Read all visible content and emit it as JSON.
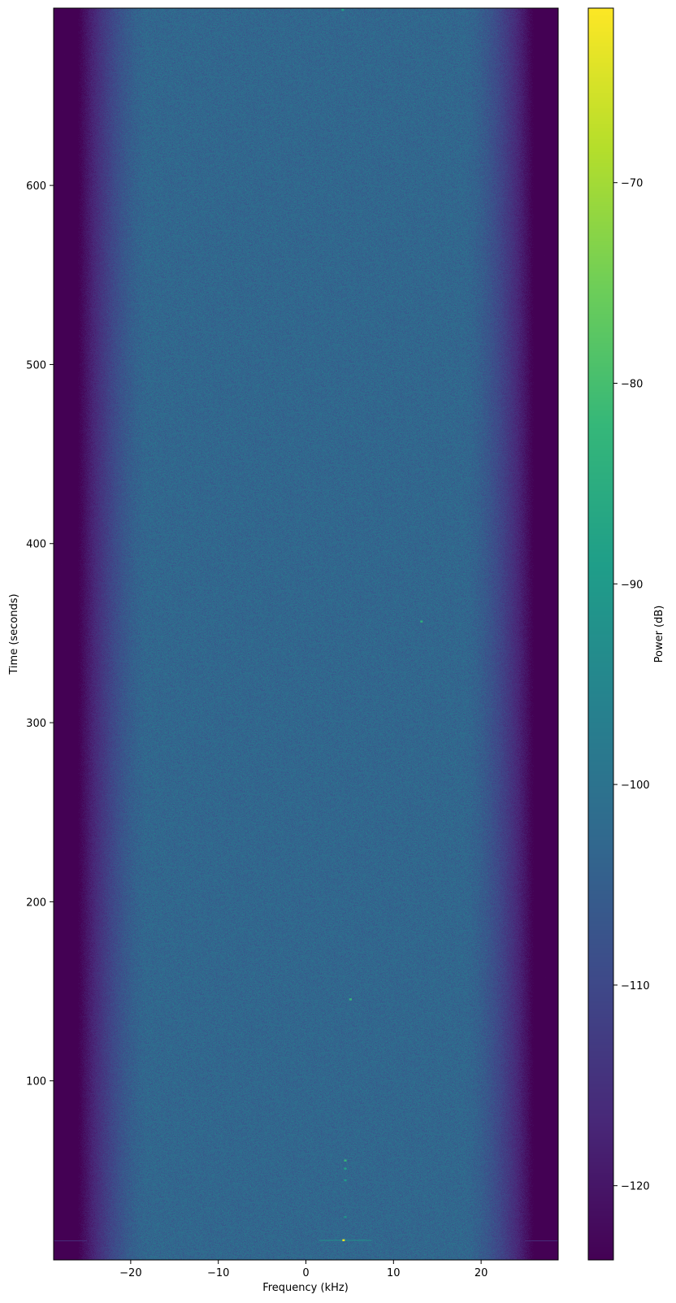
{
  "chart_data": {
    "type": "heatmap",
    "title": "",
    "xlabel": "Frequency (kHz)",
    "ylabel": "Time (seconds)",
    "colorbar_label": "Power (dB)",
    "colormap": "viridis",
    "xlim": [
      -28.8,
      28.8
    ],
    "ylim": [
      0,
      699
    ],
    "clim": [
      -123.7,
      -61.3
    ],
    "x_ticks": [
      -20,
      -10,
      0,
      10,
      20
    ],
    "x_tick_labels": [
      "−20",
      "−10",
      "0",
      "10",
      "20"
    ],
    "y_ticks": [
      100,
      200,
      300,
      400,
      500,
      600
    ],
    "y_tick_labels": [
      "100",
      "200",
      "300",
      "400",
      "500",
      "600"
    ],
    "colorbar_ticks": [
      -70,
      -80,
      -90,
      -100,
      -110,
      -120
    ],
    "colorbar_tick_labels": [
      "−70",
      "−80",
      "−90",
      "−100",
      "−110",
      "−120"
    ],
    "noise_floor_db": -103,
    "band_edge_floor_db": -124,
    "passband_khz": [
      -18,
      18
    ],
    "rolloff_edge_khz": [
      -26,
      26
    ],
    "peaks": [
      {
        "freq_khz": 4.3,
        "time_s": 11,
        "power_db": -63
      },
      {
        "freq_khz": 4.5,
        "time_s": 55.5,
        "power_db": -82
      },
      {
        "freq_khz": 4.5,
        "time_s": 51,
        "power_db": -88
      },
      {
        "freq_khz": 4.5,
        "time_s": 44.5,
        "power_db": -90
      },
      {
        "freq_khz": 4.5,
        "time_s": 24,
        "power_db": -92
      },
      {
        "freq_khz": 5.1,
        "time_s": 145.5,
        "power_db": -82
      },
      {
        "freq_khz": 13.2,
        "time_s": 356.5,
        "power_db": -84
      },
      {
        "freq_khz": 4.2,
        "time_s": 698,
        "power_db": -88
      }
    ],
    "horizontal_lines": [
      {
        "time_s": 11,
        "power_db": -108
      }
    ],
    "grid": false
  }
}
